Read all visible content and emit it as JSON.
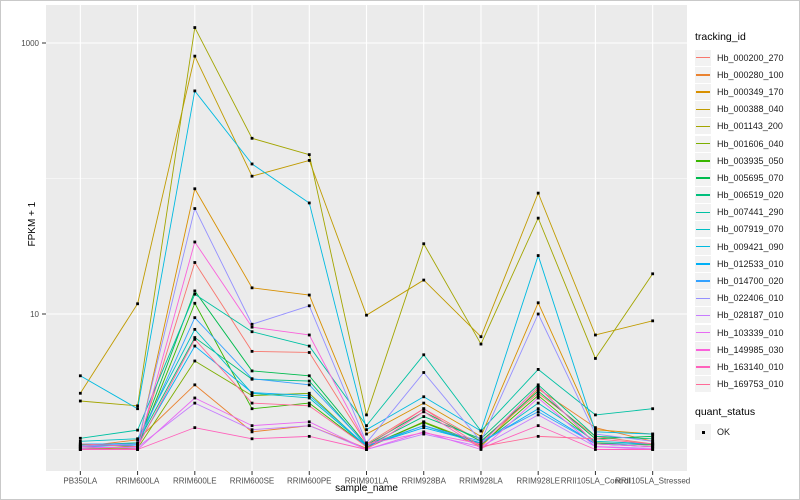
{
  "colors": {
    "panel_bg": "#EBEBEB",
    "gridline": "#FFFFFF",
    "tick_text": "#4D4D4D",
    "axis_title_text": "#000000",
    "point_marker": "#000000",
    "legend_key_bg": "#F2F2F2"
  },
  "legend": {
    "tracking_title": "tracking_id",
    "quant_title": "quant_status",
    "quant_items": [
      {
        "label": "OK",
        "marker": "black-square"
      }
    ]
  },
  "chart_data": {
    "type": "line",
    "title": "",
    "xlabel": "sample_name",
    "ylabel": "FPKM + 1",
    "y_scale": "log10",
    "ylim": [
      0.85,
      1500
    ],
    "grid": "on",
    "legend_position": "right",
    "y_axis_ticks": [
      {
        "label": "1000",
        "value": 1000
      },
      {
        "label": "10",
        "value": 10
      }
    ],
    "y_minor_gridlines": [
      1,
      100
    ],
    "point_marker": "black-square",
    "categories": [
      "PB350LA",
      "RRIM600LA",
      "RRIM600LE",
      "RRIM600SE",
      "RRIM600PE",
      "RRIM901LA",
      "RRIM928BA",
      "RRIM928LA",
      "RRIM928LE",
      "RRII105LA_Control",
      "RRII105LA_Stressed"
    ],
    "series": [
      {
        "name": "Hb_000200_270",
        "color": "#F8766D",
        "values": [
          1.1,
          1.05,
          24,
          5.3,
          5.2,
          1.1,
          2.0,
          1.15,
          2.6,
          1.25,
          1.1
        ]
      },
      {
        "name": "Hb_000280_100",
        "color": "#EA8331",
        "values": [
          1.05,
          1.18,
          3.0,
          1.35,
          1.5,
          1.02,
          1.6,
          1.05,
          2.8,
          1.45,
          1.15
        ]
      },
      {
        "name": "Hb_000349_170",
        "color": "#D89000",
        "values": [
          1.0,
          1.05,
          84,
          15.6,
          13.8,
          1.3,
          2.2,
          1.25,
          12.1,
          1.4,
          1.3
        ]
      },
      {
        "name": "Hb_000388_040",
        "color": "#C09B00",
        "values": [
          2.6,
          11.9,
          800,
          104,
          136,
          9.8,
          17.8,
          6.8,
          78,
          7.0,
          8.9
        ]
      },
      {
        "name": "Hb_001143_200",
        "color": "#A3A500",
        "values": [
          2.28,
          2.1,
          1300,
          198,
          150,
          1.8,
          33,
          6.0,
          51,
          4.7,
          19.8
        ]
      },
      {
        "name": "Hb_001606_040",
        "color": "#7CAE00",
        "values": [
          1.0,
          1.02,
          4.5,
          2.5,
          2.6,
          1.04,
          1.6,
          1.1,
          2.9,
          1.1,
          1.05
        ]
      },
      {
        "name": "Hb_003935_050",
        "color": "#39B600",
        "values": [
          1.02,
          1.05,
          12,
          2.0,
          2.2,
          1.05,
          1.58,
          1.08,
          2.5,
          1.12,
          1.08
        ]
      },
      {
        "name": "Hb_005695_070",
        "color": "#00BB4E",
        "values": [
          1.05,
          1.1,
          14.8,
          3.8,
          3.5,
          1.08,
          1.9,
          1.15,
          2.7,
          1.2,
          1.25
        ]
      },
      {
        "name": "Hb_006519_020",
        "color": "#00BF7D",
        "values": [
          1.08,
          1.12,
          6.7,
          3.3,
          3.2,
          1.06,
          1.75,
          1.2,
          3.0,
          1.25,
          1.2
        ]
      },
      {
        "name": "Hb_007441_290",
        "color": "#00C1A3",
        "values": [
          1.21,
          1.39,
          14,
          7.4,
          5.8,
          1.5,
          5.0,
          1.37,
          3.9,
          1.8,
          2.0
        ]
      },
      {
        "name": "Hb_007919_070",
        "color": "#00BFC4",
        "values": [
          1.15,
          1.2,
          7.7,
          2.6,
          2.4,
          1.05,
          1.5,
          1.1,
          2.2,
          1.15,
          1.1
        ]
      },
      {
        "name": "Hb_009421_090",
        "color": "#00BAE0",
        "values": [
          3.5,
          2.0,
          443,
          128,
          66,
          1.4,
          2.45,
          1.37,
          27,
          1.35,
          1.3
        ]
      },
      {
        "name": "Hb_012533_010",
        "color": "#00B0F6",
        "values": [
          1.05,
          1.08,
          5.8,
          2.63,
          2.5,
          1.06,
          1.45,
          1.12,
          2.0,
          1.1,
          1.05
        ]
      },
      {
        "name": "Hb_014700_020",
        "color": "#35A2FF",
        "values": [
          1.1,
          1.1,
          9.4,
          3.33,
          3.0,
          1.08,
          1.5,
          1.15,
          1.9,
          1.1,
          1.1
        ]
      },
      {
        "name": "Hb_022406_010",
        "color": "#9590FF",
        "values": [
          1.06,
          1.1,
          60,
          8.4,
          11.5,
          1.12,
          3.7,
          1.15,
          10,
          1.3,
          1.15
        ]
      },
      {
        "name": "Hb_028187_010",
        "color": "#C77CFF",
        "values": [
          1.02,
          1.04,
          2.2,
          1.4,
          1.5,
          1.0,
          1.3,
          1.05,
          1.8,
          1.05,
          1.02
        ]
      },
      {
        "name": "Hb_103339_010",
        "color": "#E76BF3",
        "values": [
          1.0,
          1.0,
          2.4,
          1.5,
          1.6,
          1.0,
          1.35,
          1.0,
          2.4,
          1.05,
          1.0
        ]
      },
      {
        "name": "Hb_149985_030",
        "color": "#FA62DB",
        "values": [
          1.05,
          1.02,
          34,
          8.0,
          7.0,
          1.1,
          1.33,
          1.1,
          2.9,
          1.1,
          1.05
        ]
      },
      {
        "name": "Hb_163140_010",
        "color": "#FF62BC",
        "values": [
          1.0,
          1.0,
          1.45,
          1.2,
          1.25,
          1.0,
          1.9,
          1.02,
          1.5,
          1.0,
          1.0
        ]
      },
      {
        "name": "Hb_169753_010",
        "color": "#FF6A98",
        "values": [
          1.1,
          1.05,
          6.5,
          2.2,
          2.1,
          1.05,
          2.0,
          1.05,
          1.25,
          1.2,
          1.1
        ]
      }
    ]
  }
}
